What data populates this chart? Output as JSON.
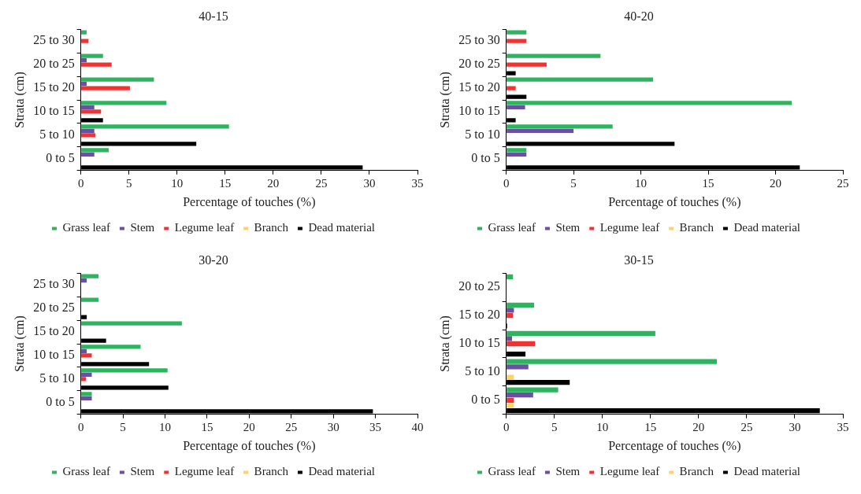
{
  "chart_data": [
    {
      "type": "bar",
      "orientation": "horizontal",
      "title": "40-15",
      "xlabel": "Percentage of touches (%)",
      "ylabel": "Strata (cm)",
      "categories": [
        "25 to 30",
        "20 to 25",
        "15 to 20",
        "10 to 15",
        "5 to 10",
        "0 to 5"
      ],
      "xlim": [
        0,
        35
      ],
      "xticks": [
        0,
        5,
        10,
        15,
        20,
        25,
        30,
        35
      ],
      "grid": false,
      "legend": "bottom",
      "series": [
        {
          "name": "Grass leaf",
          "color": "#2eb35f",
          "values": [
            0.6,
            2.3,
            7.6,
            8.9,
            15.4,
            2.9
          ]
        },
        {
          "name": "Stem",
          "color": "#6a4fa3",
          "values": [
            null,
            0.6,
            0.6,
            1.4,
            1.4,
            1.4
          ]
        },
        {
          "name": "Legume leaf",
          "color": "#ee3333",
          "values": [
            0.8,
            3.2,
            5.1,
            2.1,
            1.5,
            null
          ]
        },
        {
          "name": "Branch",
          "color": "#fcd36b",
          "values": [
            null,
            null,
            null,
            null,
            null,
            null
          ]
        },
        {
          "name": "Dead material",
          "color": "#000000",
          "values": [
            null,
            null,
            null,
            2.3,
            12.0,
            29.3
          ]
        }
      ]
    },
    {
      "type": "bar",
      "orientation": "horizontal",
      "title": "40-20",
      "xlabel": "Percentage of touches (%)",
      "ylabel": "Strata (cm)",
      "categories": [
        "25 to 30",
        "20 to 25",
        "15 to 20",
        "10 to 15",
        "5 to 10",
        "0 to 5"
      ],
      "xlim": [
        0,
        25
      ],
      "xticks": [
        0,
        5,
        10,
        15,
        20,
        25
      ],
      "grid": false,
      "legend": "bottom",
      "series": [
        {
          "name": "Grass leaf",
          "color": "#2eb35f",
          "values": [
            1.5,
            7.0,
            10.9,
            21.2,
            7.9,
            1.5
          ]
        },
        {
          "name": "Stem",
          "color": "#6a4fa3",
          "values": [
            null,
            null,
            null,
            1.4,
            5.0,
            1.5
          ]
        },
        {
          "name": "Legume leaf",
          "color": "#ee3333",
          "values": [
            1.5,
            3.0,
            0.7,
            null,
            null,
            null
          ]
        },
        {
          "name": "Branch",
          "color": "#fcd36b",
          "values": [
            null,
            null,
            null,
            null,
            null,
            null
          ]
        },
        {
          "name": "Dead material",
          "color": "#000000",
          "values": [
            null,
            0.7,
            1.5,
            0.7,
            12.5,
            21.8
          ]
        }
      ]
    },
    {
      "type": "bar",
      "orientation": "horizontal",
      "title": "30-20",
      "xlabel": "Percentage of touches (%)",
      "ylabel": "Strata (cm)",
      "categories": [
        "25 to 30",
        "20 to 25",
        "15 to 20",
        "10 to 15",
        "5 to 10",
        "0 to 5"
      ],
      "xlim": [
        0,
        40
      ],
      "xticks": [
        0,
        5,
        10,
        15,
        20,
        25,
        30,
        35,
        40
      ],
      "grid": false,
      "legend": "bottom",
      "series": [
        {
          "name": "Grass leaf",
          "color": "#2eb35f",
          "values": [
            2.1,
            2.1,
            12.0,
            7.1,
            10.3,
            1.3
          ]
        },
        {
          "name": "Stem",
          "color": "#6a4fa3",
          "values": [
            0.7,
            null,
            null,
            0.7,
            1.3,
            1.3
          ]
        },
        {
          "name": "Legume leaf",
          "color": "#ee3333",
          "values": [
            null,
            null,
            null,
            1.3,
            0.6,
            null
          ]
        },
        {
          "name": "Branch",
          "color": "#fcd36b",
          "values": [
            null,
            null,
            null,
            null,
            null,
            null
          ]
        },
        {
          "name": "Dead material",
          "color": "#000000",
          "values": [
            null,
            0.7,
            3.0,
            8.1,
            10.4,
            34.7
          ]
        }
      ]
    },
    {
      "type": "bar",
      "orientation": "horizontal",
      "title": "30-15",
      "xlabel": "Percentage of touches (%)",
      "ylabel": "Strata (cm)",
      "categories": [
        "20 to 25",
        "15 to 20",
        "10 to 15",
        "5 to 10",
        "0 to 5"
      ],
      "xlim": [
        0,
        35
      ],
      "xticks": [
        0,
        5,
        10,
        15,
        20,
        25,
        30,
        35
      ],
      "grid": false,
      "legend": "bottom",
      "series": [
        {
          "name": "Grass leaf",
          "color": "#2eb35f",
          "values": [
            0.7,
            2.9,
            15.5,
            21.9,
            5.4
          ]
        },
        {
          "name": "Stem",
          "color": "#6a4fa3",
          "values": [
            null,
            0.8,
            0.6,
            2.3,
            2.8
          ]
        },
        {
          "name": "Legume leaf",
          "color": "#ee3333",
          "values": [
            null,
            0.7,
            3.0,
            null,
            0.8
          ]
        },
        {
          "name": "Branch",
          "color": "#fcd36b",
          "values": [
            null,
            null,
            null,
            0.8,
            0.8
          ]
        },
        {
          "name": "Dead material",
          "color": "#000000",
          "values": [
            null,
            0.1,
            2.0,
            6.6,
            32.6
          ]
        }
      ]
    }
  ]
}
